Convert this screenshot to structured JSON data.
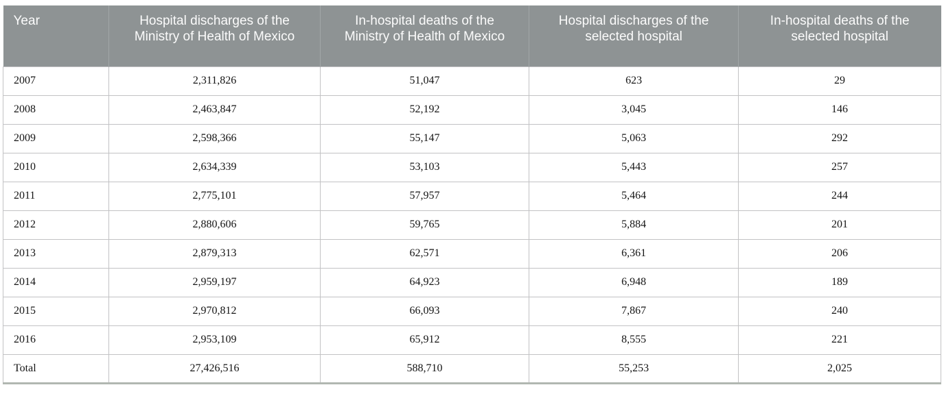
{
  "table": {
    "columns": [
      {
        "label": "Year"
      },
      {
        "label": "Hospital discharges of the Ministry of Health of Mexico"
      },
      {
        "label": "In-hospital deaths of the Ministry of Health of Mexico"
      },
      {
        "label": "Hospital discharges of the selected hospital"
      },
      {
        "label": "In-hospital deaths of the selected hospital"
      }
    ],
    "rows": [
      [
        "2007",
        "2,311,826",
        "51,047",
        "623",
        "29"
      ],
      [
        "2008",
        "2,463,847",
        "52,192",
        "3,045",
        "146"
      ],
      [
        "2009",
        "2,598,366",
        "55,147",
        "5,063",
        "292"
      ],
      [
        "2010",
        "2,634,339",
        "53,103",
        "5,443",
        "257"
      ],
      [
        "2011",
        "2,775,101",
        "57,957",
        "5,464",
        "244"
      ],
      [
        "2012",
        "2,880,606",
        "59,765",
        "5,884",
        "201"
      ],
      [
        "2013",
        "2,879,313",
        "62,571",
        "6,361",
        "206"
      ],
      [
        "2014",
        "2,959,197",
        "64,923",
        "6,948",
        "189"
      ],
      [
        "2015",
        "2,970,812",
        "66,093",
        "7,867",
        "240"
      ],
      [
        "2016",
        "2,953,109",
        "65,912",
        "8,555",
        "221"
      ],
      [
        "Total",
        "27,426,516",
        "588,710",
        "55,253",
        "2,025"
      ]
    ]
  },
  "colors": {
    "header_bg": "#8e9394",
    "header_text": "#fbfbfb",
    "header_grid": "#a2a7a8",
    "grid": "#c2c2c4",
    "bottom_border": "#b1b7b1"
  }
}
